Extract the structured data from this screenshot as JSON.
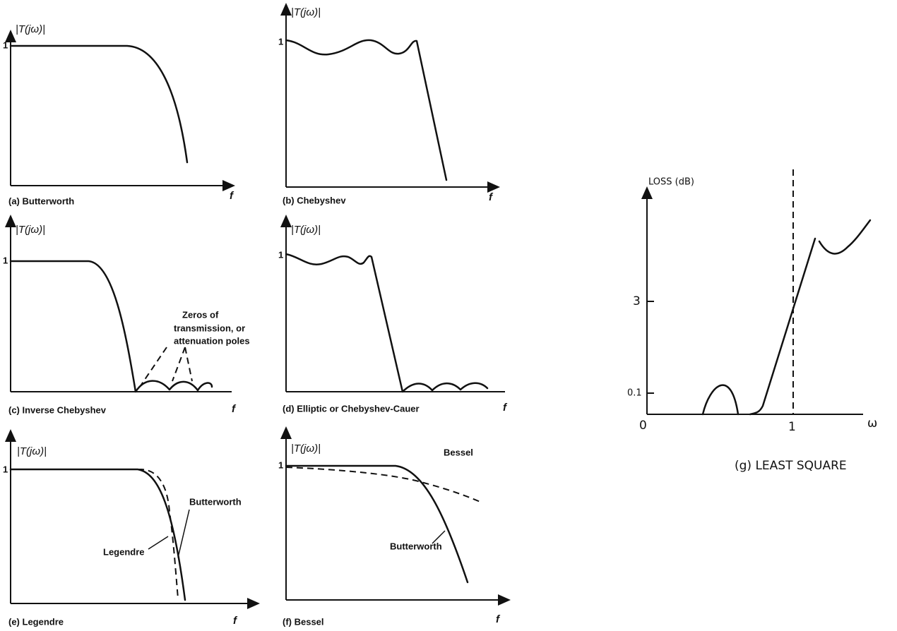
{
  "panels": [
    {
      "y_label": "|T(jω)|",
      "y_tick": "1",
      "x_label": "f",
      "caption": "(a) Butterworth"
    },
    {
      "y_label": "|T(jω)|",
      "y_tick": "1",
      "x_label": "f",
      "caption": "(b) Chebyshev"
    },
    {
      "y_label": "|T(jω)|",
      "y_tick": "1",
      "x_label": "f",
      "caption": "(c) Inverse Chebyshev",
      "annotation": [
        "Zeros of",
        "transmission, or",
        "attenuation poles"
      ]
    },
    {
      "y_label": "|T(jω)|",
      "y_tick": "1",
      "x_label": "f",
      "caption": "(d) Elliptic or Chebyshev-Cauer"
    },
    {
      "y_label": "|T(jω)|",
      "y_tick": "1",
      "x_label": "f",
      "caption": "(e) Legendre",
      "curve_labels": [
        "Butterworth",
        "Legendre"
      ]
    },
    {
      "y_label": "|T(jω)|",
      "y_tick": "1",
      "x_label": "f",
      "caption": "(f) Bessel",
      "curve_labels": [
        "Bessel",
        "Butterworth"
      ]
    },
    {
      "y_label": "LOSS (dB)",
      "y_ticks": [
        "3",
        "0.1"
      ],
      "x_ticks": [
        "0",
        "1"
      ],
      "x_label": "ω",
      "caption": "(g) LEAST SQUARE"
    }
  ]
}
